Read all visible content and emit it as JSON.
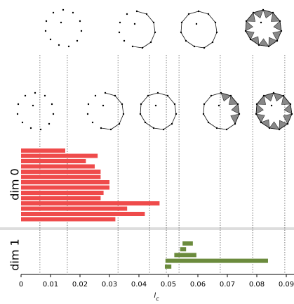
{
  "chart_data": {
    "type": "barcode",
    "xlabel": "l",
    "xlabel_sub": "c",
    "xlim": [
      0,
      0.0925
    ],
    "xticks": [
      0,
      0.01,
      0.02,
      0.03,
      0.04,
      0.05,
      0.06,
      0.07,
      0.08,
      0.09
    ],
    "thresholds": [
      0.0064,
      0.0157,
      0.0329,
      0.0436,
      0.0493,
      0.0536,
      0.0676,
      0.0786,
      0.0895
    ],
    "series": [
      {
        "name": "dim 0",
        "color": "#ef4b4b",
        "births": [
          0,
          0,
          0,
          0,
          0,
          0,
          0,
          0,
          0,
          0,
          0,
          0,
          0,
          0
        ],
        "deaths": [
          0.015,
          0.026,
          0.022,
          0.025,
          0.027,
          0.027,
          0.03,
          0.03,
          0.028,
          0.027,
          0.047,
          0.036,
          0.042,
          0.032
        ]
      },
      {
        "name": "dim 1",
        "color": "#6b8b3d",
        "births": [
          0.0548,
          0.054,
          0.052,
          0.049,
          0.0488
        ],
        "deaths": [
          0.0583,
          0.056,
          0.0595,
          0.0838,
          0.051
        ]
      }
    ]
  }
}
